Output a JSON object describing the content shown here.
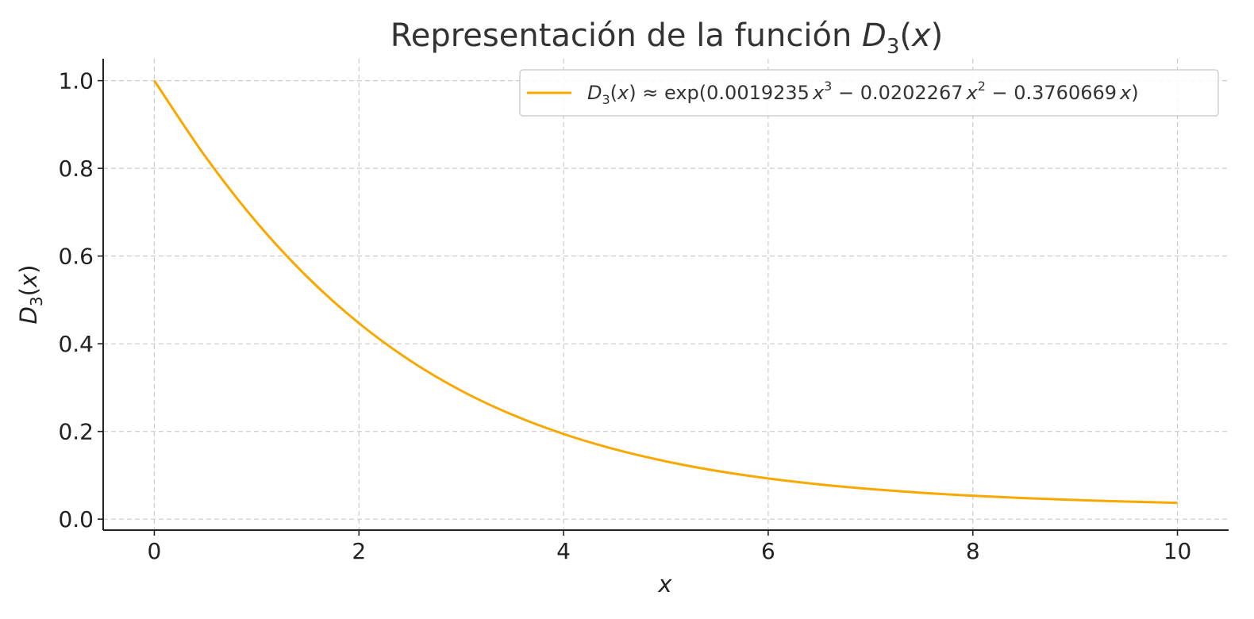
{
  "chart_data": {
    "type": "line",
    "title": {
      "prefix": "Representación de la función ",
      "func_letter": "D",
      "func_subscript": "3",
      "func_arg_open": "(",
      "func_arg": "x",
      "func_arg_close": ")"
    },
    "xlabel": "x",
    "ylabel": {
      "letter": "D",
      "subscript": "3",
      "open": "(",
      "arg": "x",
      "close": ")"
    },
    "xlim": [
      -0.5,
      10.5
    ],
    "ylim": [
      -0.025,
      1.05
    ],
    "x_ticks": [
      0,
      2,
      4,
      6,
      8,
      10
    ],
    "x_tick_labels": [
      "0",
      "2",
      "4",
      "6",
      "8",
      "10"
    ],
    "y_ticks": [
      0.0,
      0.2,
      0.4,
      0.6,
      0.8,
      1.0
    ],
    "y_tick_labels": [
      "0.0",
      "0.2",
      "0.4",
      "0.6",
      "0.8",
      "1.0"
    ],
    "grid": true,
    "legend_position": "top-right",
    "series": [
      {
        "name": {
          "letter": "D",
          "subscript": "3",
          "open": "(",
          "arg": "x",
          "close": ")",
          "approx": " ≈ ",
          "expr_start": "exp(0.0019235",
          "var1": "x",
          "pow1": "3",
          "mid1": " − 0.0202267",
          "var2": "x",
          "pow2": "2",
          "mid2": " − 0.3760669",
          "var3": "x",
          "end": ")"
        },
        "color": "#f9a800",
        "x": [
          0,
          0.5,
          1,
          1.5,
          2,
          2.5,
          3,
          3.5,
          4,
          4.5,
          5,
          5.5,
          6,
          6.5,
          7,
          7.5,
          8,
          8.5,
          9,
          9.5,
          10
        ],
        "y": [
          1.0,
          0.8264,
          0.677,
          0.5512,
          0.4469,
          0.3617,
          0.293,
          0.238,
          0.1942,
          0.1594,
          0.1318,
          0.11,
          0.0928,
          0.0793,
          0.0686,
          0.0601,
          0.0534,
          0.0481,
          0.0438,
          0.0402,
          0.0373
        ]
      }
    ]
  }
}
